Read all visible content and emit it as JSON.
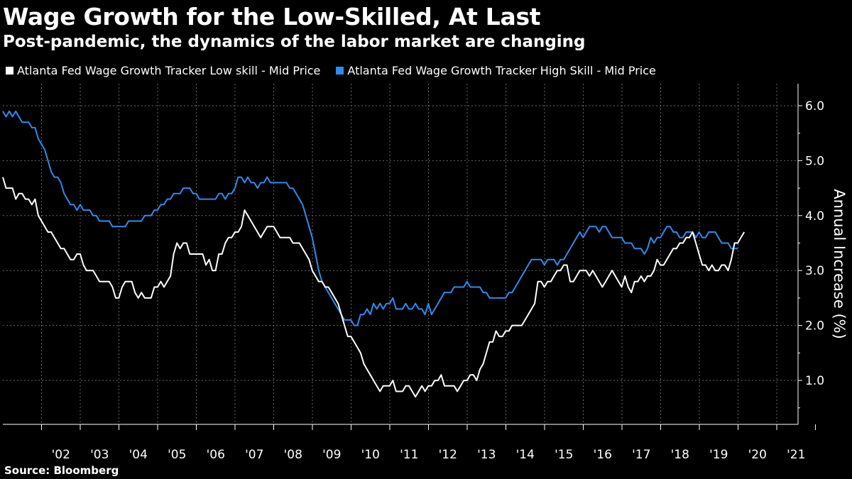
{
  "chart_data": {
    "type": "line",
    "title": "Wage Growth for the Low-Skilled, At Last",
    "subtitle": "Post-pandemic, the dynamics of the labor market are changing",
    "ylabel": "Annual Increase (%)",
    "source": "Source: Bloomberg",
    "x_start": 2001.0,
    "x_end": 2021.55,
    "x_step": 0.0833,
    "ylim": [
      0.2,
      6.4
    ],
    "y_ticks": [
      1.0,
      2.0,
      3.0,
      4.0,
      5.0,
      6.0
    ],
    "y_tick_labels": [
      "1.0",
      "2.0",
      "3.0",
      "4.0",
      "5.0",
      "6.0"
    ],
    "x_tick_years": [
      2002,
      2003,
      2004,
      2005,
      2006,
      2007,
      2008,
      2009,
      2010,
      2011,
      2012,
      2013,
      2014,
      2015,
      2016,
      2017,
      2018,
      2019,
      2020,
      2021
    ],
    "x_tick_labels": [
      "'02",
      "'03",
      "'04",
      "'05",
      "'06",
      "'07",
      "'08",
      "'09",
      "'10",
      "'11",
      "'12",
      "'13",
      "'14",
      "'15",
      "'16",
      "'17",
      "'18",
      "'19",
      "'20",
      "'21"
    ],
    "grid": true,
    "legend_position": "top-left",
    "series": [
      {
        "name": "Atlanta Fed Wage Growth Tracker Low skill - Mid Price",
        "color": "#ffffff",
        "values": [
          4.7,
          4.5,
          4.5,
          4.5,
          4.3,
          4.4,
          4.4,
          4.3,
          4.3,
          4.2,
          4.3,
          4.0,
          3.9,
          3.8,
          3.7,
          3.7,
          3.6,
          3.5,
          3.4,
          3.4,
          3.3,
          3.2,
          3.2,
          3.3,
          3.3,
          3.1,
          3.0,
          3.0,
          3.0,
          2.9,
          2.8,
          2.8,
          2.8,
          2.8,
          2.7,
          2.5,
          2.5,
          2.7,
          2.8,
          2.8,
          2.8,
          2.6,
          2.5,
          2.6,
          2.5,
          2.5,
          2.5,
          2.7,
          2.7,
          2.8,
          2.7,
          2.8,
          2.9,
          3.3,
          3.5,
          3.4,
          3.5,
          3.5,
          3.3,
          3.3,
          3.3,
          3.3,
          3.3,
          3.1,
          3.2,
          3.0,
          3.0,
          3.3,
          3.3,
          3.5,
          3.6,
          3.6,
          3.7,
          3.7,
          3.8,
          4.1,
          4.0,
          3.9,
          3.8,
          3.7,
          3.6,
          3.7,
          3.8,
          3.8,
          3.8,
          3.7,
          3.6,
          3.6,
          3.6,
          3.6,
          3.5,
          3.5,
          3.5,
          3.4,
          3.3,
          3.2,
          3.0,
          2.9,
          2.8,
          2.8,
          2.7,
          2.7,
          2.6,
          2.5,
          2.4,
          2.2,
          2.0,
          1.8,
          1.8,
          1.7,
          1.6,
          1.5,
          1.3,
          1.2,
          1.1,
          1.0,
          0.9,
          0.8,
          0.9,
          0.9,
          0.9,
          1.0,
          0.8,
          0.8,
          0.8,
          0.9,
          0.9,
          0.8,
          0.7,
          0.8,
          0.9,
          0.8,
          0.9,
          0.9,
          1.0,
          1.0,
          1.1,
          0.9,
          0.9,
          0.9,
          0.9,
          0.8,
          0.9,
          1.0,
          1.0,
          1.1,
          1.1,
          1.0,
          1.2,
          1.3,
          1.5,
          1.7,
          1.7,
          1.9,
          1.8,
          1.8,
          1.9,
          1.9,
          2.0,
          2.0,
          2.0,
          2.0,
          2.1,
          2.2,
          2.3,
          2.4,
          2.8,
          2.8,
          2.7,
          2.8,
          2.8,
          2.9,
          3.0,
          3.0,
          3.1,
          3.1,
          2.8,
          2.8,
          2.9,
          3.0,
          3.0,
          3.0,
          2.9,
          3.0,
          2.9,
          2.8,
          2.7,
          2.8,
          2.9,
          3.0,
          2.9,
          2.8,
          2.7,
          2.9,
          2.7,
          2.6,
          2.8,
          2.8,
          2.9,
          2.8,
          2.9,
          2.9,
          3.0,
          3.2,
          3.1,
          3.1,
          3.2,
          3.3,
          3.4,
          3.4,
          3.5,
          3.5,
          3.6,
          3.6,
          3.7,
          3.5,
          3.3,
          3.1,
          3.1,
          3.0,
          3.1,
          3.0,
          3.0,
          3.1,
          3.1,
          3.0,
          3.2,
          3.5,
          3.5,
          3.6,
          3.7
        ]
      },
      {
        "name": "Atlanta Fed Wage Growth Tracker High Skill - Mid Price",
        "color": "#2d8cf0",
        "values": [
          5.9,
          5.8,
          5.9,
          5.8,
          5.9,
          5.8,
          5.7,
          5.7,
          5.7,
          5.6,
          5.6,
          5.4,
          5.3,
          5.2,
          5.0,
          4.8,
          4.7,
          4.7,
          4.6,
          4.4,
          4.3,
          4.2,
          4.2,
          4.1,
          4.2,
          4.1,
          4.1,
          4.1,
          4.0,
          4.0,
          3.9,
          3.9,
          3.9,
          3.9,
          3.8,
          3.8,
          3.8,
          3.8,
          3.8,
          3.9,
          3.9,
          3.9,
          3.9,
          3.9,
          4.0,
          4.0,
          4.0,
          4.1,
          4.1,
          4.2,
          4.2,
          4.3,
          4.3,
          4.4,
          4.4,
          4.4,
          4.5,
          4.5,
          4.5,
          4.4,
          4.4,
          4.3,
          4.3,
          4.3,
          4.3,
          4.3,
          4.3,
          4.4,
          4.4,
          4.3,
          4.4,
          4.4,
          4.5,
          4.7,
          4.7,
          4.6,
          4.7,
          4.6,
          4.6,
          4.5,
          4.6,
          4.6,
          4.7,
          4.6,
          4.6,
          4.6,
          4.6,
          4.6,
          4.6,
          4.5,
          4.5,
          4.4,
          4.3,
          4.2,
          4.0,
          3.8,
          3.6,
          3.3,
          3.0,
          2.8,
          2.7,
          2.6,
          2.5,
          2.4,
          2.3,
          2.2,
          2.1,
          2.1,
          2.1,
          2.0,
          2.0,
          2.2,
          2.2,
          2.3,
          2.2,
          2.4,
          2.3,
          2.4,
          2.3,
          2.4,
          2.4,
          2.5,
          2.3,
          2.3,
          2.3,
          2.4,
          2.3,
          2.3,
          2.4,
          2.3,
          2.3,
          2.2,
          2.4,
          2.2,
          2.3,
          2.4,
          2.5,
          2.6,
          2.6,
          2.6,
          2.7,
          2.7,
          2.7,
          2.7,
          2.8,
          2.7,
          2.7,
          2.7,
          2.7,
          2.6,
          2.6,
          2.5,
          2.5,
          2.5,
          2.5,
          2.5,
          2.5,
          2.6,
          2.6,
          2.7,
          2.8,
          2.9,
          3.0,
          3.1,
          3.2,
          3.2,
          3.2,
          3.2,
          3.1,
          3.2,
          3.2,
          3.2,
          3.1,
          3.2,
          3.2,
          3.3,
          3.4,
          3.5,
          3.6,
          3.7,
          3.6,
          3.7,
          3.8,
          3.8,
          3.8,
          3.7,
          3.8,
          3.8,
          3.7,
          3.6,
          3.6,
          3.6,
          3.6,
          3.5,
          3.5,
          3.5,
          3.4,
          3.4,
          3.4,
          3.3,
          3.4,
          3.6,
          3.5,
          3.6,
          3.6,
          3.7,
          3.8,
          3.8,
          3.7,
          3.7,
          3.6,
          3.6,
          3.7,
          3.7,
          3.7,
          3.6,
          3.7,
          3.6,
          3.6,
          3.7,
          3.7,
          3.7,
          3.6,
          3.5,
          3.5,
          3.5,
          3.4,
          3.4,
          3.4
        ]
      }
    ]
  }
}
